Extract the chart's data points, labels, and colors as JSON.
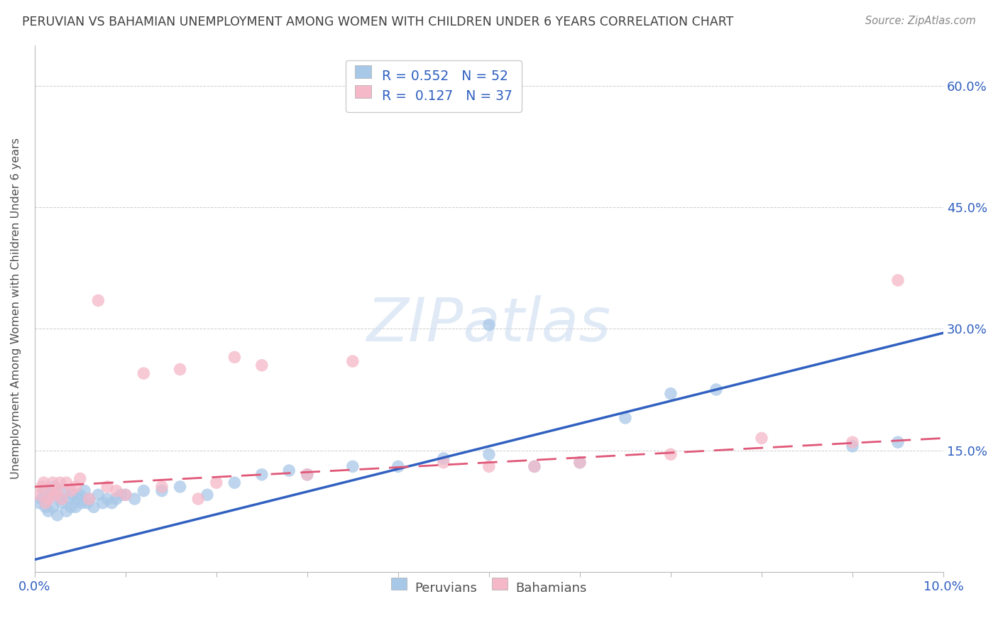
{
  "title": "PERUVIAN VS BAHAMIAN UNEMPLOYMENT AMONG WOMEN WITH CHILDREN UNDER 6 YEARS CORRELATION CHART",
  "source_text": "Source: ZipAtlas.com",
  "ylabel": "Unemployment Among Women with Children Under 6 years",
  "xlim": [
    0.0,
    10.0
  ],
  "ylim": [
    0.0,
    65.0
  ],
  "yticks_right": [
    15.0,
    30.0,
    45.0,
    60.0
  ],
  "ytick_labels_right": [
    "15.0%",
    "30.0%",
    "45.0%",
    "60.0%"
  ],
  "xticks": [
    0.0,
    1.0,
    2.0,
    3.0,
    4.0,
    5.0,
    6.0,
    7.0,
    8.0,
    9.0,
    10.0
  ],
  "watermark": "ZIPatlas",
  "legend_r_blue": "0.552",
  "legend_n_blue": "52",
  "legend_r_pink": "0.127",
  "legend_n_pink": "37",
  "blue_scatter_color": "#a8c8e8",
  "pink_scatter_color": "#f4b8c8",
  "blue_line_color": "#3060c0",
  "pink_line_color": "#e05878",
  "text_blue_color": "#3060c0",
  "peruvians_label": "Peruvians",
  "bahamians_label": "Bahamians",
  "blue_scatter_x": [
    0.05,
    0.08,
    0.1,
    0.12,
    0.15,
    0.18,
    0.2,
    0.22,
    0.25,
    0.28,
    0.3,
    0.32,
    0.35,
    0.38,
    0.4,
    0.42,
    0.45,
    0.48,
    0.5,
    0.52,
    0.55,
    0.58,
    0.6,
    0.65,
    0.7,
    0.75,
    0.8,
    0.85,
    0.9,
    0.95,
    1.0,
    1.1,
    1.2,
    1.4,
    1.6,
    1.9,
    2.2,
    2.5,
    2.8,
    3.0,
    3.5,
    4.0,
    4.5,
    5.0,
    5.0,
    5.5,
    6.0,
    6.5,
    7.0,
    7.5,
    9.0,
    9.5
  ],
  "blue_scatter_y": [
    8.5,
    9.0,
    10.0,
    8.0,
    7.5,
    9.5,
    8.0,
    10.5,
    7.0,
    9.0,
    8.5,
    10.0,
    7.5,
    9.0,
    8.0,
    9.5,
    8.0,
    9.0,
    9.5,
    8.5,
    10.0,
    8.5,
    9.0,
    8.0,
    9.5,
    8.5,
    9.0,
    8.5,
    9.0,
    9.5,
    9.5,
    9.0,
    10.0,
    10.0,
    10.5,
    9.5,
    11.0,
    12.0,
    12.5,
    12.0,
    13.0,
    13.0,
    14.0,
    14.5,
    30.5,
    13.0,
    13.5,
    19.0,
    22.0,
    22.5,
    15.5,
    16.0
  ],
  "pink_scatter_x": [
    0.05,
    0.08,
    0.1,
    0.12,
    0.15,
    0.18,
    0.2,
    0.22,
    0.25,
    0.28,
    0.3,
    0.35,
    0.4,
    0.45,
    0.5,
    0.6,
    0.7,
    0.8,
    0.9,
    1.0,
    1.2,
    1.4,
    1.6,
    1.8,
    2.0,
    2.2,
    2.5,
    3.0,
    3.5,
    4.5,
    5.0,
    5.5,
    6.0,
    7.0,
    8.0,
    9.0,
    9.5
  ],
  "pink_scatter_y": [
    9.5,
    10.5,
    11.0,
    8.5,
    9.0,
    10.0,
    11.0,
    9.5,
    10.0,
    11.0,
    9.0,
    11.0,
    10.0,
    10.5,
    11.5,
    9.0,
    33.5,
    10.5,
    10.0,
    9.5,
    24.5,
    10.5,
    25.0,
    9.0,
    11.0,
    26.5,
    25.5,
    12.0,
    26.0,
    13.5,
    13.0,
    13.0,
    13.5,
    14.5,
    16.5,
    16.0,
    36.0
  ],
  "blue_line_y": [
    1.5,
    29.5
  ],
  "pink_line_y": [
    10.5,
    16.5
  ],
  "background_color": "#ffffff",
  "grid_color": "#cccccc",
  "title_color": "#404040",
  "axis_tick_color": "#3060c0"
}
